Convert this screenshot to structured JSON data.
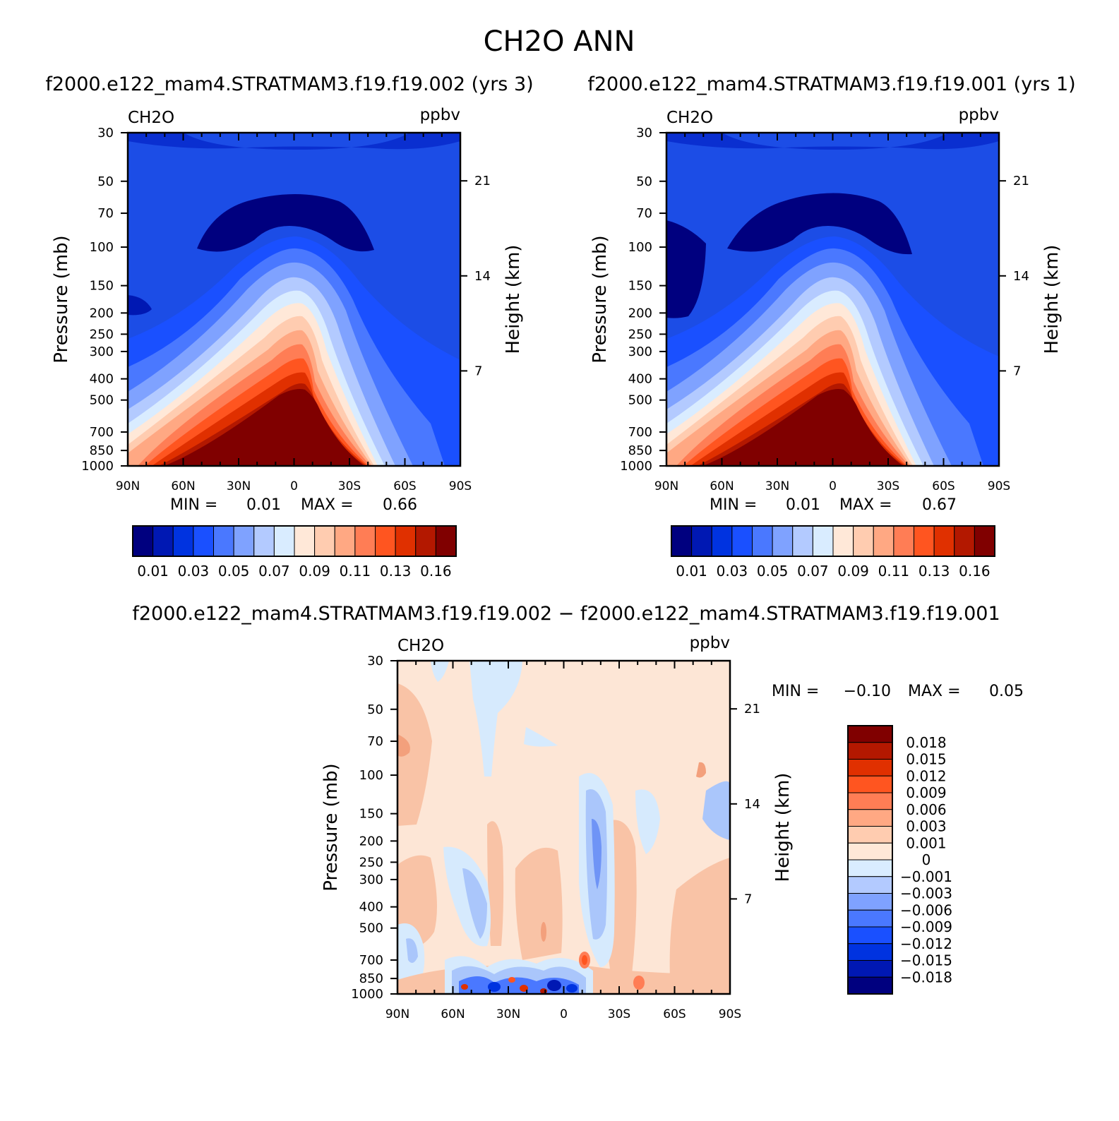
{
  "figure_title": "CH2O ANN",
  "chart_data": [
    {
      "type": "contour",
      "title": "f2000.e122_mam4.STRATMAM3.f19.f19.002 (yrs 3)",
      "left_label": "CH2O",
      "right_label": "ppbv",
      "ylabel": "Pressure (mb)",
      "ylabel_right": "Height (km)",
      "pressure_ticks": [
        "30",
        "50",
        "70",
        "100",
        "150",
        "200",
        "250",
        "300",
        "400",
        "500",
        "700",
        "850",
        "1000"
      ],
      "pressure_values": [
        30,
        50,
        70,
        100,
        150,
        200,
        250,
        300,
        400,
        500,
        700,
        850,
        1000
      ],
      "height_ticks": [
        "21",
        "14",
        "7"
      ],
      "height_values": [
        21,
        14,
        7
      ],
      "lat_ticks": [
        "90N",
        "60N",
        "30N",
        "0",
        "30S",
        "60S",
        "90S"
      ],
      "lat_values": [
        90,
        60,
        30,
        0,
        -30,
        -60,
        -90
      ],
      "min_label": "MIN =",
      "min_value": "0.01",
      "max_label": "MAX =",
      "max_value": "0.66",
      "colorbar_labels": [
        "0.01",
        "0.03",
        "0.05",
        "0.07",
        "0.09",
        "0.11",
        "0.13",
        "0.16"
      ],
      "colorbar_colors": [
        "#00007f",
        "#0018b3",
        "#0033e0",
        "#1a50ff",
        "#4a78ff",
        "#7fa2ff",
        "#b3caff",
        "#d9ecff",
        "#ffe8d8",
        "#ffccb0",
        "#ffa883",
        "#ff7d55",
        "#ff5520",
        "#e03000",
        "#b31800",
        "#800000"
      ]
    },
    {
      "type": "contour",
      "title": "f2000.e122_mam4.STRATMAM3.f19.f19.001 (yrs 1)",
      "left_label": "CH2O",
      "right_label": "ppbv",
      "ylabel": "Pressure (mb)",
      "ylabel_right": "Height (km)",
      "min_label": "MIN =",
      "min_value": "0.01",
      "max_label": "MAX =",
      "max_value": "0.67",
      "colorbar_labels": [
        "0.01",
        "0.03",
        "0.05",
        "0.07",
        "0.09",
        "0.11",
        "0.13",
        "0.16"
      ]
    },
    {
      "type": "contour",
      "title": "f2000.e122_mam4.STRATMAM3.f19.f19.002 − f2000.e122_mam4.STRATMAM3.f19.f19.001",
      "left_label": "CH2O",
      "right_label": "ppbv",
      "ylabel": "Pressure (mb)",
      "ylabel_right": "Height (km)",
      "min_label": "MIN =",
      "min_value": "−0.10",
      "max_label": "MAX =",
      "max_value": "0.05",
      "colorbar_labels": [
        "0.018",
        "0.015",
        "0.012",
        "0.009",
        "0.006",
        "0.003",
        "0.001",
        "0",
        "−0.001",
        "−0.003",
        "−0.006",
        "−0.009",
        "−0.012",
        "−0.015",
        "−0.018"
      ],
      "colorbar_colors": [
        "#800000",
        "#b31800",
        "#e03000",
        "#ff5520",
        "#ff7d55",
        "#ffa883",
        "#ffccb0",
        "#ffe8d8",
        "#d9ecff",
        "#b3caff",
        "#7fa2ff",
        "#4a78ff",
        "#1a50ff",
        "#0033e0",
        "#0018b3",
        "#00007f"
      ]
    }
  ]
}
